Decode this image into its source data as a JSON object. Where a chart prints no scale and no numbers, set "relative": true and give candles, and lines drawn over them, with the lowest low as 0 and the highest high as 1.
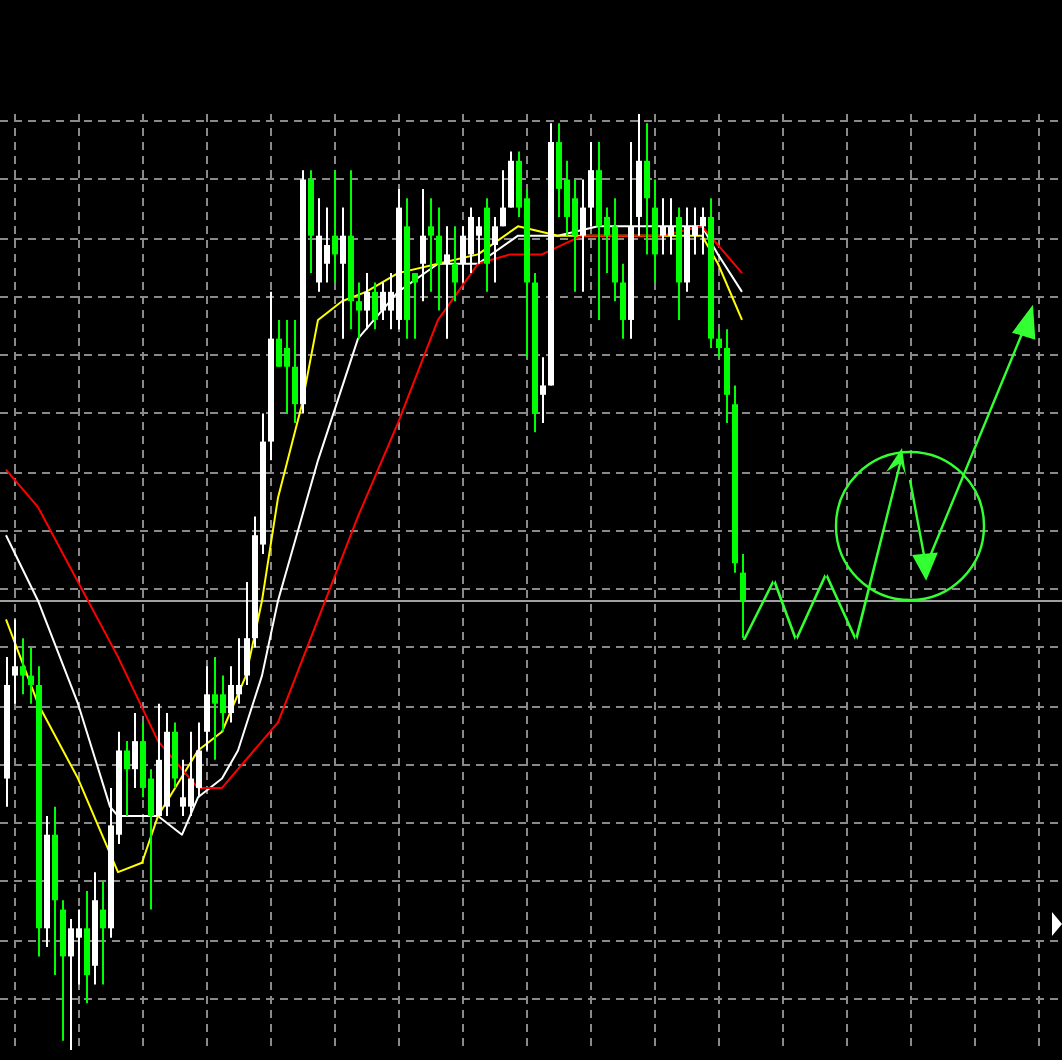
{
  "chart_data": {
    "type": "candlestick",
    "relative": true,
    "grid": true,
    "categories": [
      null,
      null,
      null,
      null,
      null,
      null,
      null,
      null,
      null,
      null,
      null,
      null,
      null,
      null,
      null,
      null,
      null,
      null,
      null,
      null,
      null,
      null,
      null,
      null,
      null,
      null,
      null,
      null,
      null,
      null,
      null,
      null,
      null,
      null,
      null,
      null,
      null,
      null,
      null,
      null,
      null,
      null,
      null,
      null,
      null,
      null,
      null,
      null,
      null,
      null,
      null,
      null,
      null,
      null,
      null,
      null,
      null,
      null,
      null,
      null,
      null,
      null,
      null,
      null,
      null,
      null,
      null,
      null,
      null,
      null,
      null,
      null,
      null,
      null,
      null,
      null,
      null,
      null,
      null,
      null,
      null,
      null,
      null,
      null,
      null,
      null,
      null,
      null,
      null,
      null,
      null,
      null,
      null
    ],
    "ohlc": [
      [
        0.29,
        0.42,
        0.26,
        0.39
      ],
      [
        0.4,
        0.46,
        0.37,
        0.41
      ],
      [
        0.41,
        0.44,
        0.38,
        0.4
      ],
      [
        0.4,
        0.43,
        0.37,
        0.39
      ],
      [
        0.39,
        0.41,
        0.1,
        0.13
      ],
      [
        0.13,
        0.25,
        0.11,
        0.23
      ],
      [
        0.23,
        0.26,
        0.08,
        0.16
      ],
      [
        0.15,
        0.16,
        0.01,
        0.1
      ],
      [
        0.1,
        0.14,
        0,
        0.13
      ],
      [
        0.12,
        0.15,
        0.07,
        0.13
      ],
      [
        0.13,
        0.17,
        0.05,
        0.08
      ],
      [
        0.09,
        0.19,
        0.07,
        0.16
      ],
      [
        0.15,
        0.18,
        0.07,
        0.13
      ],
      [
        0.13,
        0.28,
        0.12,
        0.24
      ],
      [
        0.23,
        0.34,
        0.22,
        0.32
      ],
      [
        0.32,
        0.33,
        0.25,
        0.3
      ],
      [
        0.3,
        0.36,
        0.28,
        0.33
      ],
      [
        0.33,
        0.35,
        0.27,
        0.28
      ],
      [
        0.29,
        0.3,
        0.15,
        0.25
      ],
      [
        0.25,
        0.37,
        0.25,
        0.31
      ],
      [
        0.26,
        0.36,
        0.25,
        0.34
      ],
      [
        0.34,
        0.35,
        0.28,
        0.29
      ],
      [
        0.26,
        0.31,
        0.25,
        0.27
      ],
      [
        0.26,
        0.34,
        0.25,
        0.29
      ],
      [
        0.28,
        0.35,
        0.27,
        0.32
      ],
      [
        0.34,
        0.41,
        0.32,
        0.38
      ],
      [
        0.38,
        0.42,
        0.31,
        0.37
      ],
      [
        0.38,
        0.4,
        0.34,
        0.36
      ],
      [
        0.36,
        0.41,
        0.35,
        0.39
      ],
      [
        0.38,
        0.44,
        0.37,
        0.39
      ],
      [
        0.4,
        0.5,
        0.39,
        0.44
      ],
      [
        0.44,
        0.57,
        0.43,
        0.55
      ],
      [
        0.54,
        0.68,
        0.53,
        0.65
      ],
      [
        0.65,
        0.81,
        0.63,
        0.76
      ],
      [
        0.76,
        0.78,
        0.73,
        0.73
      ],
      [
        0.75,
        0.78,
        0.68,
        0.73
      ],
      [
        0.73,
        0.78,
        0.67,
        0.69
      ],
      [
        0.69,
        0.94,
        0.68,
        0.93
      ],
      [
        0.93,
        0.94,
        0.83,
        0.87
      ],
      [
        0.82,
        0.91,
        0.81,
        0.87
      ],
      [
        0.84,
        0.9,
        0.82,
        0.86
      ],
      [
        0.87,
        0.94,
        0.82,
        0.85
      ],
      [
        0.84,
        0.9,
        0.76,
        0.87
      ],
      [
        0.87,
        0.94,
        0.77,
        0.8
      ],
      [
        0.8,
        0.82,
        0.76,
        0.79
      ],
      [
        0.79,
        0.83,
        0.77,
        0.81
      ],
      [
        0.81,
        0.82,
        0.77,
        0.78
      ],
      [
        0.79,
        0.82,
        0.78,
        0.81
      ],
      [
        0.79,
        0.83,
        0.77,
        0.81
      ],
      [
        0.78,
        0.92,
        0.77,
        0.9
      ],
      [
        0.88,
        0.91,
        0.76,
        0.78
      ],
      [
        0.83,
        0.83,
        0.76,
        0.82
      ],
      [
        0.84,
        0.92,
        0.8,
        0.87
      ],
      [
        0.88,
        0.91,
        0.81,
        0.87
      ],
      [
        0.87,
        0.9,
        0.79,
        0.84
      ],
      [
        0.84,
        0.88,
        0.76,
        0.85
      ],
      [
        0.84,
        0.88,
        0.8,
        0.82
      ],
      [
        0.84,
        0.88,
        0.82,
        0.87
      ],
      [
        0.85,
        0.9,
        0.83,
        0.89
      ],
      [
        0.87,
        0.89,
        0.84,
        0.88
      ],
      [
        0.9,
        0.91,
        0.81,
        0.84
      ],
      [
        0.86,
        0.89,
        0.82,
        0.88
      ],
      [
        0.88,
        0.94,
        0.88,
        0.9
      ],
      [
        0.9,
        0.96,
        0.9,
        0.95
      ],
      [
        0.95,
        0.96,
        0.89,
        0.9
      ],
      [
        0.91,
        0.92,
        0.74,
        0.82
      ],
      [
        0.82,
        0.83,
        0.66,
        0.68
      ],
      [
        0.7,
        0.74,
        0.67,
        0.71
      ],
      [
        0.71,
        0.99,
        0.71,
        0.97
      ],
      [
        0.97,
        0.99,
        0.89,
        0.92
      ],
      [
        0.93,
        0.95,
        0.87,
        0.89
      ],
      [
        0.91,
        0.93,
        0.81,
        0.87
      ],
      [
        0.87,
        0.93,
        0.81,
        0.9
      ],
      [
        0.9,
        0.97,
        0.88,
        0.94
      ],
      [
        0.94,
        0.97,
        0.78,
        0.88
      ],
      [
        0.89,
        0.9,
        0.83,
        0.87
      ],
      [
        0.88,
        0.91,
        0.8,
        0.82
      ],
      [
        0.82,
        0.84,
        0.76,
        0.78
      ],
      [
        0.78,
        0.97,
        0.76,
        0.88
      ],
      [
        0.89,
        1,
        0.87,
        0.95
      ],
      [
        0.95,
        0.99,
        0.85,
        0.91
      ],
      [
        0.9,
        0.93,
        0.82,
        0.85
      ],
      [
        0.87,
        0.91,
        0.85,
        0.88
      ],
      [
        0.87,
        0.91,
        0.85,
        0.88
      ],
      [
        0.89,
        0.9,
        0.78,
        0.82
      ],
      [
        0.82,
        0.9,
        0.81,
        0.88
      ],
      [
        0.87,
        0.9,
        0.85,
        0.88
      ],
      [
        0.88,
        0.9,
        0.85,
        0.89
      ],
      [
        0.89,
        0.91,
        0.75,
        0.76
      ],
      [
        0.76,
        0.77,
        0.74,
        0.75
      ],
      [
        0.75,
        0.77,
        0.67,
        0.7
      ],
      [
        0.69,
        0.71,
        0.51,
        0.52
      ],
      [
        0.51,
        0.53,
        0.44,
        0.48
      ]
    ],
    "series": [
      {
        "type": "line",
        "color": "#ff0000",
        "values": [
          0.62,
          null,
          null,
          null,
          0.58,
          null,
          null,
          null,
          null,
          0.5,
          null,
          null,
          null,
          null,
          0.42,
          null,
          null,
          null,
          null,
          0.33,
          null,
          null,
          null,
          null,
          0.28,
          null,
          null,
          0.28,
          null,
          0.3,
          null,
          null,
          null,
          null,
          0.35,
          null,
          null,
          null,
          null,
          0.46,
          null,
          null,
          null,
          null,
          0.57,
          null,
          null,
          null,
          null,
          0.67,
          null,
          null,
          null,
          null,
          0.78,
          null,
          null,
          null,
          null,
          0.84,
          null,
          null,
          null,
          0.85,
          null,
          null,
          null,
          0.85,
          null,
          null,
          null,
          null,
          0.87,
          null,
          null,
          null,
          null,
          0.87,
          null,
          null,
          null,
          null,
          0.87,
          null,
          null,
          null,
          null,
          0.88,
          null,
          0.86,
          null,
          null,
          0.83
        ]
      },
      {
        "type": "line",
        "color": "#ffff00",
        "values": [
          0.46,
          null,
          null,
          null,
          0.37,
          null,
          null,
          null,
          null,
          0.29,
          null,
          null,
          null,
          null,
          0.19,
          null,
          null,
          0.2,
          null,
          0.25,
          null,
          null,
          null,
          null,
          0.32,
          null,
          null,
          0.34,
          null,
          null,
          0.4,
          null,
          0.48,
          null,
          0.59,
          null,
          null,
          0.69,
          null,
          0.78,
          null,
          null,
          0.8,
          null,
          null,
          0.81,
          null,
          null,
          null,
          0.83,
          null,
          null,
          null,
          null,
          0.84,
          null,
          null,
          null,
          null,
          0.85,
          null,
          null,
          null,
          null,
          0.88,
          null,
          null,
          null,
          null,
          0.87,
          null,
          null,
          null,
          null,
          null,
          null,
          null,
          null,
          null,
          null,
          null,
          null,
          0.87,
          null,
          null,
          null,
          null,
          0.87,
          null,
          0.84,
          null,
          null,
          0.78
        ]
      },
      {
        "type": "line",
        "color": "#ffffff",
        "values": [
          0.55,
          null,
          null,
          null,
          0.48,
          null,
          null,
          null,
          null,
          0.37,
          null,
          null,
          null,
          0.26,
          0.25,
          null,
          null,
          null,
          null,
          0.25,
          null,
          null,
          0.23,
          null,
          0.27,
          null,
          null,
          0.29,
          null,
          0.32,
          null,
          null,
          0.4,
          null,
          0.48,
          null,
          null,
          null,
          null,
          0.63,
          null,
          null,
          null,
          null,
          0.76,
          null,
          null,
          null,
          null,
          0.81,
          null,
          null,
          null,
          null,
          0.84,
          null,
          null,
          null,
          null,
          0.84,
          null,
          null,
          null,
          null,
          0.87,
          null,
          null,
          null,
          null,
          0.87,
          null,
          null,
          null,
          null,
          0.88,
          null,
          null,
          null,
          null,
          null,
          null,
          null,
          0.88,
          null,
          null,
          null,
          null,
          0.88,
          null,
          0.85,
          null,
          null,
          0.81
        ]
      }
    ],
    "ref_lines": [
      {
        "axis": "y",
        "value": 0.48,
        "color": "#a0a0a0"
      }
    ]
  }
}
